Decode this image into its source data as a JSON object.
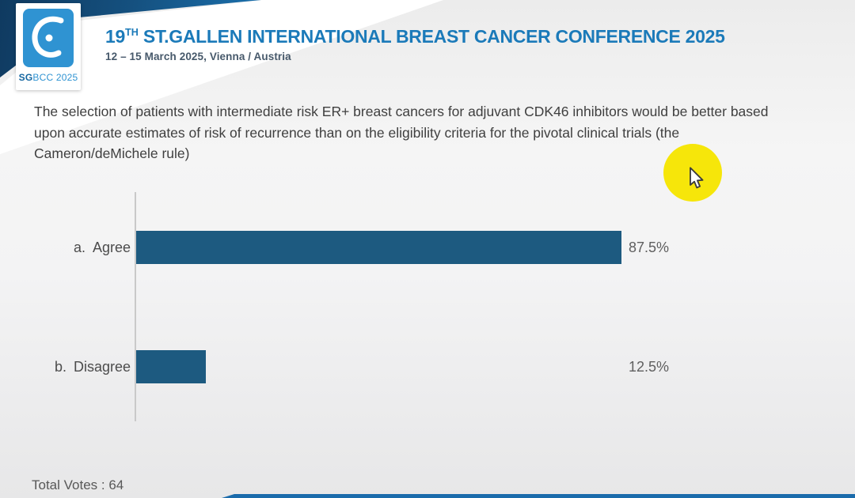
{
  "header": {
    "logo": {
      "caption_bold": "SG",
      "caption_rest": "BCC 2025",
      "symbol": "sgbcc-breast-logo",
      "square_color": "#2f93d2"
    },
    "title_prefix": "19",
    "title_superscript": "TH",
    "title_rest": " ST.GALLEN INTERNATIONAL BREAST CANCER CONFERENCE 2025",
    "subtitle": "12 – 15 March 2025, Vienna / Austria"
  },
  "question": "The selection of patients with intermediate risk ER+ breast cancers for adjuvant CDK46 inhibitors would be better based upon accurate estimates of risk of recurrence than on the eligibility criteria for the pivotal clinical trials (the Cameron/deMichele rule)",
  "chart_data": {
    "type": "bar",
    "orientation": "horizontal",
    "title": "",
    "categories": [
      {
        "key": "a.",
        "label": "Agree"
      },
      {
        "key": "b.",
        "label": "Disagree"
      }
    ],
    "values": [
      87.5,
      12.5
    ],
    "value_labels": [
      "87.5%",
      "12.5%"
    ],
    "xlim": [
      0,
      100
    ],
    "grid": false,
    "legend": false,
    "bar_color": "#1d5a80",
    "axis_color": "#c9c9c9"
  },
  "footer": {
    "total_votes": "Total Votes : 64"
  },
  "cursor": {
    "type": "arrow-pointer",
    "highlight_color": "#f6e60a"
  },
  "colors": {
    "accent_blue": "#1b7ab9",
    "navy": "#0f3a60",
    "bar_blue": "#1d5a80",
    "highlight_yellow": "#f6e60a"
  }
}
